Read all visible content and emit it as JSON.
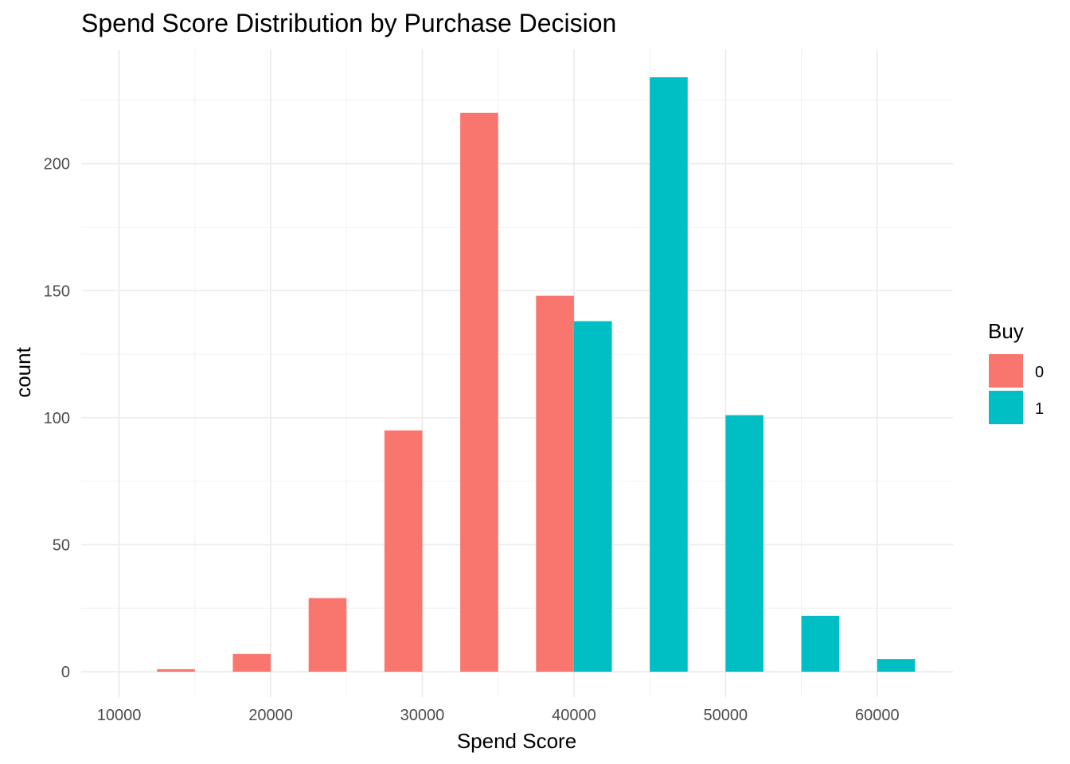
{
  "chart_data": {
    "type": "bar",
    "title": "Spend Score Distribution by Purchase Decision",
    "xlabel": "Spend Score",
    "ylabel": "count",
    "xlim": [
      7500,
      65000
    ],
    "ylim": [
      -10,
      245
    ],
    "x_ticks": [
      "10000",
      "20000",
      "30000",
      "40000",
      "50000",
      "60000"
    ],
    "y_ticks": [
      "0",
      "50",
      "100",
      "150",
      "200"
    ],
    "grid": true,
    "legend": {
      "title": "Buy",
      "position": "right",
      "entries": [
        {
          "label": "0",
          "color": "#F8766D"
        },
        {
          "label": "1",
          "color": "#00BFC4"
        }
      ]
    },
    "series": [
      {
        "name": "0",
        "color": "#F8766D",
        "bins": [
          {
            "x0": 12500,
            "x1": 15000,
            "count": 1
          },
          {
            "x0": 17500,
            "x1": 20000,
            "count": 7
          },
          {
            "x0": 22500,
            "x1": 25000,
            "count": 29
          },
          {
            "x0": 27500,
            "x1": 30000,
            "count": 95
          },
          {
            "x0": 32500,
            "x1": 35000,
            "count": 220
          },
          {
            "x0": 37500,
            "x1": 40000,
            "count": 148
          }
        ]
      },
      {
        "name": "1",
        "color": "#00BFC4",
        "bins": [
          {
            "x0": 40000,
            "x1": 42500,
            "count": 138
          },
          {
            "x0": 45000,
            "x1": 47500,
            "count": 234
          },
          {
            "x0": 50000,
            "x1": 52500,
            "count": 101
          },
          {
            "x0": 55000,
            "x1": 57500,
            "count": 22
          },
          {
            "x0": 60000,
            "x1": 62500,
            "count": 5
          }
        ]
      }
    ]
  }
}
